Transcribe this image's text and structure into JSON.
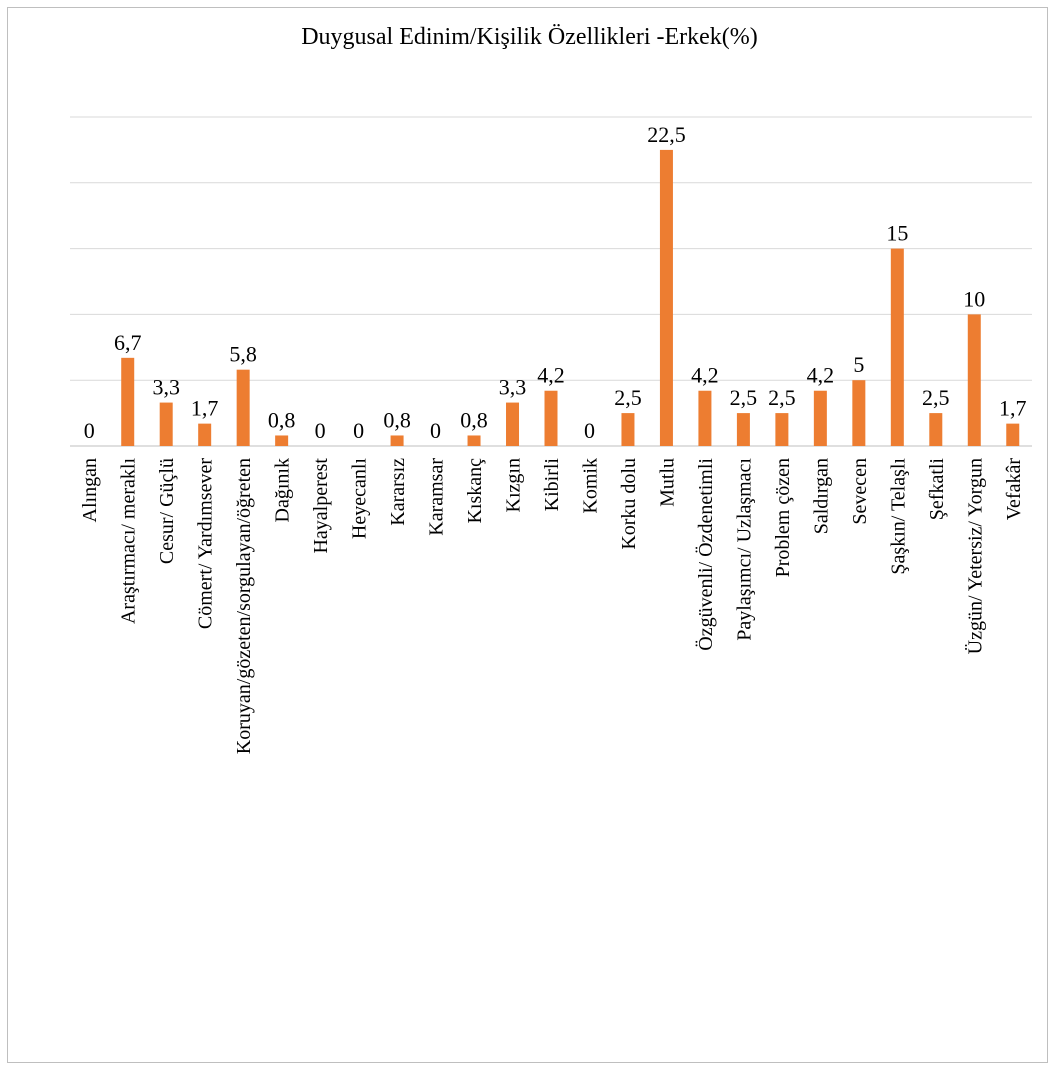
{
  "chart_data": {
    "type": "bar",
    "title": "Duygusal Edinim/Kişilik Özellikleri -Erkek(%)",
    "xlabel": "",
    "ylabel": "",
    "ylim": [
      0,
      25
    ],
    "grid": true,
    "legend": "none",
    "bar_color": "#ED7D31",
    "categories": [
      "Alıngan",
      "Araştırmacı/ meraklı",
      "Cesur/ Güçlü",
      "Cömert/ Yardımsever",
      "Koruyan/gözeten/sorgulayan/öğreten",
      "Dağınık",
      "Hayalperest",
      "Heyecanlı",
      "Kararsız",
      "Karamsar",
      "Kıskanç",
      "Kızgın",
      "Kibirli",
      "Komik",
      "Korku dolu",
      "Mutlu",
      "Özgüvenli/ Özdenetimli",
      "Paylaşımcı/ Uzlaşmacı",
      "Problem çözen",
      "Saldırgan",
      "Sevecen",
      "Şaşkın/ Telaşlı",
      "Şefkatli",
      "Üzgün/ Yetersiz/ Yorgun",
      "Vefakâr"
    ],
    "values": [
      0,
      6.7,
      3.3,
      1.7,
      5.8,
      0.8,
      0,
      0,
      0.8,
      0,
      0.8,
      3.3,
      4.2,
      0,
      2.5,
      22.5,
      4.2,
      2.5,
      2.5,
      4.2,
      5,
      15,
      2.5,
      10,
      1.7
    ],
    "data_labels": [
      "0",
      "6,7",
      "3,3",
      "1,7",
      "5,8",
      "0,8",
      "0",
      "0",
      "0,8",
      "0",
      "0,8",
      "3,3",
      "4,2",
      "0",
      "2,5",
      "22,5",
      "4,2",
      "2,5",
      "2,5",
      "4,2",
      "5",
      "15",
      "2,5",
      "10",
      "1,7"
    ]
  }
}
